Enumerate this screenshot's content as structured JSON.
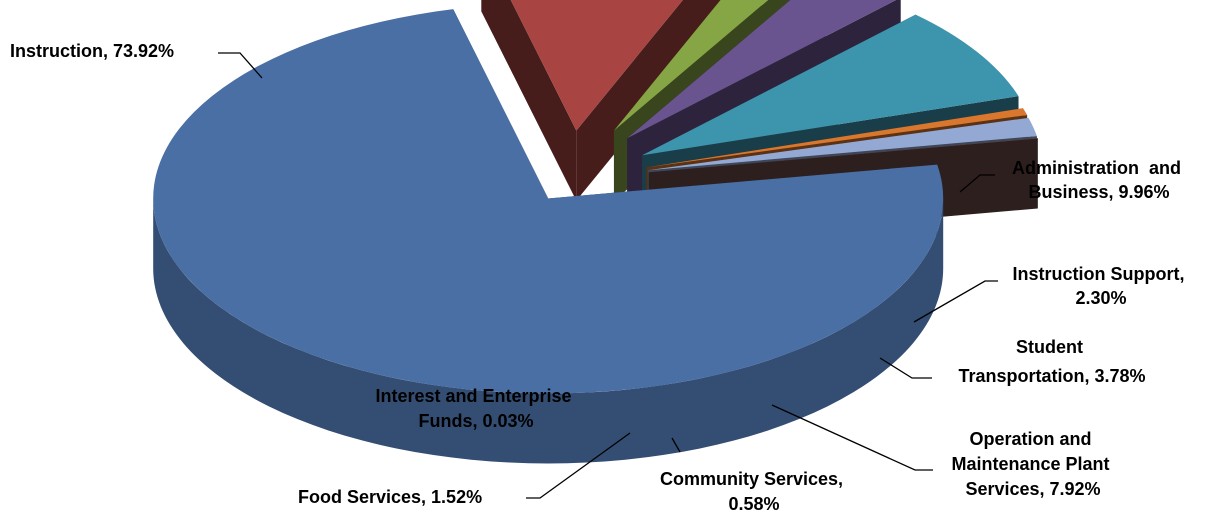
{
  "chart_data": {
    "type": "pie",
    "style": "3d-exploded",
    "title": "",
    "legend": "none",
    "slices": [
      {
        "label": "Instruction",
        "value": 73.92,
        "display": "Instruction, 73.92%",
        "color": "#4A6FA5"
      },
      {
        "label": "Administration and Business",
        "value": 9.96,
        "display": "Administration  and Business, 9.96%",
        "color": "#A84442"
      },
      {
        "label": "Instruction Support",
        "value": 2.3,
        "display": "Instruction Support, 2.30%",
        "color": "#86A544"
      },
      {
        "label": "Student Transportation",
        "value": 3.78,
        "display": "Student Transportation, 3.78%",
        "color": "#6A548F"
      },
      {
        "label": "Operation and Maintenance Plant Services",
        "value": 7.92,
        "display": "Operation and Maintenance Plant Services, 7.92%",
        "color": "#3D94AD"
      },
      {
        "label": "Community Services",
        "value": 0.58,
        "display": "Community Services, 0.58%",
        "color": "#D9772F"
      },
      {
        "label": "Food Services",
        "value": 1.52,
        "display": "Food Services, 1.52%",
        "color": "#93A9D3"
      },
      {
        "label": "Interest and Enterprise Funds",
        "value": 0.03,
        "display": "Interest and Enterprise Funds, 0.03%",
        "color": "#6E4A4A"
      }
    ]
  },
  "labels": {
    "instruction": "Instruction, 73.92%",
    "admin_l1": "Administration  and",
    "admin_l2": "Business, 9.96%",
    "support_l1": "Instruction Support,",
    "support_l2": "2.30%",
    "transport_l1": "Student",
    "transport_l2": "Transportation, 3.78%",
    "operation_l1": "Operation and",
    "operation_l2": "Maintenance Plant",
    "operation_l3": "Services, 7.92%",
    "community_l1": "Community Services,",
    "community_l2": "0.58%",
    "food": "Food Services, 1.52%",
    "interest_l1": "Interest and Enterprise",
    "interest_l2": "Funds, 0.03%"
  }
}
